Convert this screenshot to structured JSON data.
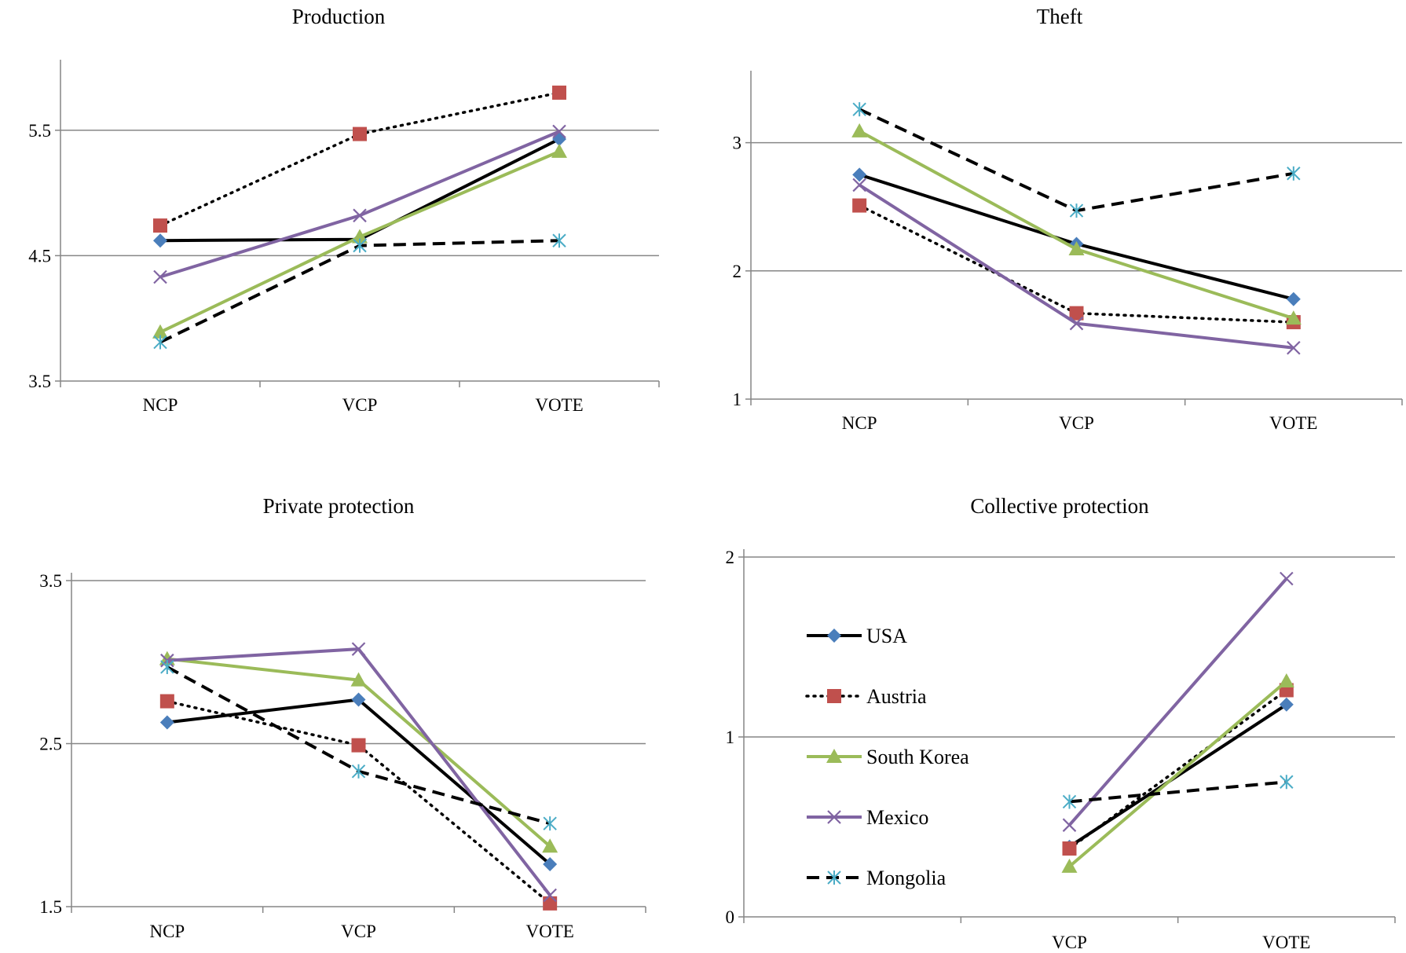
{
  "legend": [
    {
      "name": "USA",
      "color": "#000000",
      "dash": "solid",
      "marker": "diamond",
      "marker_color": "#4a7ebb"
    },
    {
      "name": "Austria",
      "color": "#000000",
      "dash": "dotted",
      "marker": "square",
      "marker_color": "#c0504d"
    },
    {
      "name": "South Korea",
      "color": "#9bbb59",
      "dash": "solid",
      "marker": "triangle",
      "marker_color": "#9bbb59"
    },
    {
      "name": "Mexico",
      "color": "#8064a2",
      "dash": "solid",
      "marker": "x",
      "marker_color": "#8064a2"
    },
    {
      "name": "Mongolia",
      "color": "#000000",
      "dash": "dashed",
      "marker": "star",
      "marker_color": "#4bacc6"
    }
  ],
  "chart_data": [
    {
      "type": "line",
      "title": "Production",
      "categories": [
        "NCP",
        "VCP",
        "VOTE"
      ],
      "ylim": [
        3.5,
        6.0
      ],
      "yticks": [
        "3.5",
        "4.5",
        "5.5"
      ],
      "grid": true,
      "series": [
        {
          "name": "USA",
          "values": [
            4.62,
            4.63,
            5.43
          ]
        },
        {
          "name": "Austria",
          "values": [
            4.74,
            5.47,
            5.8
          ]
        },
        {
          "name": "South Korea",
          "values": [
            3.89,
            4.65,
            5.33
          ]
        },
        {
          "name": "Mexico",
          "values": [
            4.33,
            4.82,
            5.49
          ]
        },
        {
          "name": "Mongolia",
          "values": [
            3.81,
            4.58,
            4.62
          ]
        }
      ]
    },
    {
      "type": "line",
      "title": "Theft",
      "categories": [
        "NCP",
        "VCP",
        "VOTE"
      ],
      "ylim": [
        1,
        3.5
      ],
      "yticks": [
        "1",
        "2",
        "3"
      ],
      "grid": true,
      "series": [
        {
          "name": "USA",
          "values": [
            2.75,
            2.21,
            1.78
          ]
        },
        {
          "name": "Austria",
          "values": [
            2.51,
            1.67,
            1.6
          ]
        },
        {
          "name": "South Korea",
          "values": [
            3.09,
            2.17,
            1.63
          ]
        },
        {
          "name": "Mexico",
          "values": [
            2.67,
            1.59,
            1.4
          ]
        },
        {
          "name": "Mongolia",
          "values": [
            3.26,
            2.47,
            2.76
          ]
        }
      ]
    },
    {
      "type": "line",
      "title": "Private protection",
      "categories": [
        "NCP",
        "VCP",
        "VOTE"
      ],
      "ylim": [
        1.5,
        3.5
      ],
      "yticks": [
        "1.5",
        "2.5",
        "3.5"
      ],
      "grid": true,
      "series": [
        {
          "name": "USA",
          "values": [
            2.63,
            2.77,
            1.76
          ]
        },
        {
          "name": "Austria",
          "values": [
            2.76,
            2.49,
            1.52
          ]
        },
        {
          "name": "South Korea",
          "values": [
            3.02,
            2.89,
            1.87
          ]
        },
        {
          "name": "Mexico",
          "values": [
            3.01,
            3.08,
            1.57
          ]
        },
        {
          "name": "Mongolia",
          "values": [
            2.97,
            2.33,
            2.01
          ]
        }
      ]
    },
    {
      "type": "line",
      "title": "Collective protection",
      "categories": [
        "",
        "VCP",
        "VOTE"
      ],
      "ylim": [
        0,
        2
      ],
      "yticks": [
        "0",
        "1",
        "2"
      ],
      "grid": true,
      "legend_position": "left",
      "series": [
        {
          "name": "USA",
          "values": [
            null,
            0.39,
            1.18
          ]
        },
        {
          "name": "Austria",
          "values": [
            null,
            0.38,
            1.26
          ]
        },
        {
          "name": "South Korea",
          "values": [
            null,
            0.28,
            1.31
          ]
        },
        {
          "name": "Mexico",
          "values": [
            null,
            0.51,
            1.88
          ]
        },
        {
          "name": "Mongolia",
          "values": [
            null,
            0.64,
            0.75
          ]
        }
      ]
    }
  ]
}
